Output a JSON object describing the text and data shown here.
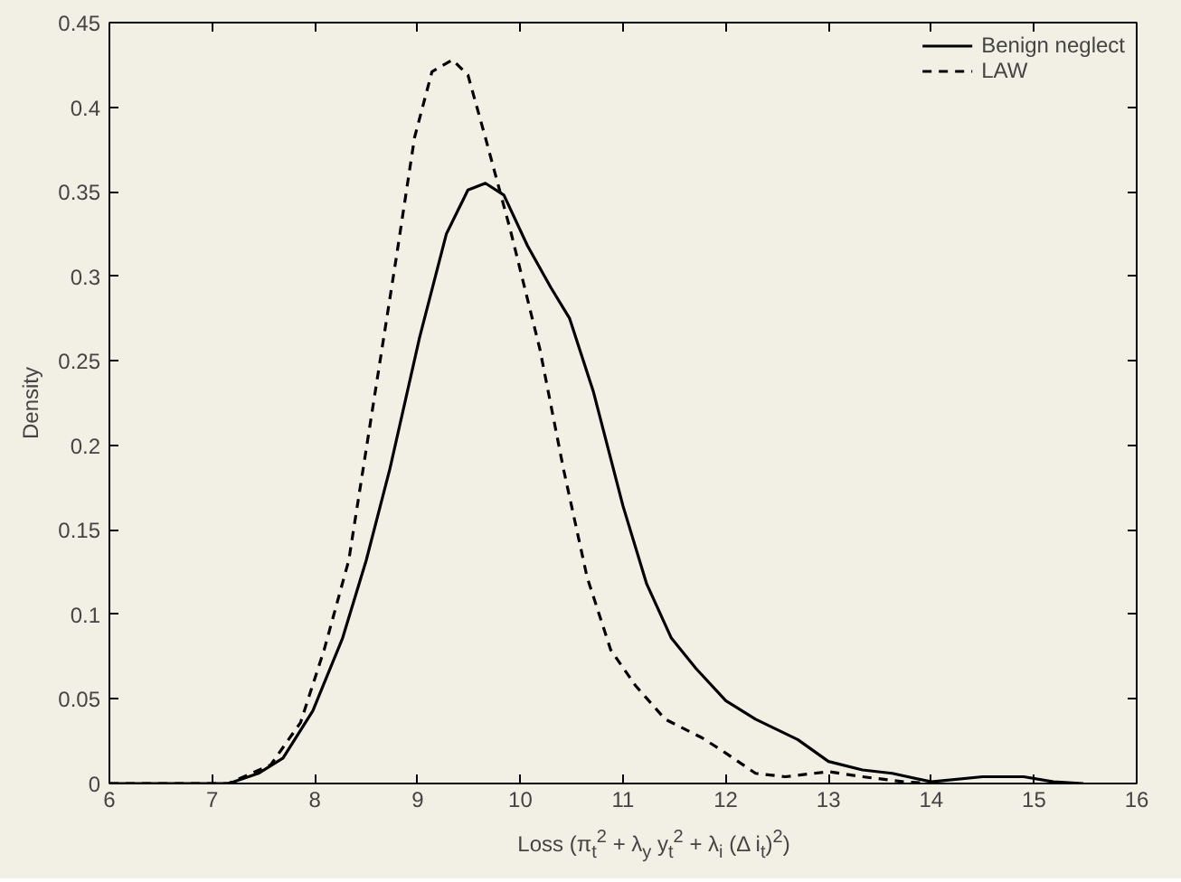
{
  "chart_data": {
    "type": "line",
    "xlabel": "Loss (π$_{t}$$^{2}$ + λ$_{y}$ y$_{t}$$^{2}$ + λ$_{i}$ (Δ i$_{t}$)$^{2}$)",
    "ylabel": "Density",
    "xlim": [
      6,
      16
    ],
    "xticks": [
      6,
      7,
      8,
      9,
      10,
      11,
      12,
      13,
      14,
      15,
      16
    ],
    "ylim": [
      0,
      0.45
    ],
    "yticks": [
      0,
      0.05,
      0.1,
      0.15,
      0.2,
      0.25,
      0.3,
      0.35,
      0.4,
      0.45
    ],
    "grid": false,
    "legend": "top right",
    "marker": "none",
    "series": [
      {
        "name": "Benign neglect",
        "color": "#000000",
        "line_style": "solid",
        "x": [
          6.0,
          7.16,
          7.45,
          7.69,
          7.98,
          8.27,
          8.5,
          8.73,
          9.02,
          9.28,
          9.49,
          9.66,
          9.84,
          10.07,
          10.3,
          10.48,
          10.71,
          11.0,
          11.23,
          11.47,
          11.71,
          12.0,
          12.29,
          12.7,
          13.0,
          13.33,
          13.62,
          14.0,
          14.5,
          14.9,
          15.19,
          15.48
        ],
        "values": [
          0,
          0,
          0.006,
          0.015,
          0.043,
          0.086,
          0.132,
          0.186,
          0.264,
          0.325,
          0.351,
          0.355,
          0.348,
          0.318,
          0.293,
          0.275,
          0.232,
          0.164,
          0.118,
          0.086,
          0.068,
          0.049,
          0.038,
          0.026,
          0.013,
          0.008,
          0.006,
          0.001,
          0.004,
          0.004,
          0.001,
          0
        ]
      },
      {
        "name": "LAW",
        "color": "#000000",
        "line_style": "dashed",
        "x": [
          6.0,
          7.16,
          7.57,
          7.86,
          8.09,
          8.33,
          8.56,
          8.79,
          8.97,
          9.14,
          9.34,
          9.49,
          9.66,
          9.9,
          10.19,
          10.42,
          10.65,
          10.88,
          11.12,
          11.41,
          11.77,
          12.0,
          12.29,
          12.58,
          13.0,
          13.33,
          13.74,
          14.03
        ],
        "values": [
          0,
          0,
          0.011,
          0.036,
          0.079,
          0.132,
          0.221,
          0.31,
          0.382,
          0.421,
          0.428,
          0.419,
          0.382,
          0.328,
          0.257,
          0.186,
          0.122,
          0.079,
          0.058,
          0.038,
          0.027,
          0.018,
          0.006,
          0.004,
          0.007,
          0.004,
          0.001,
          0
        ]
      }
    ]
  }
}
